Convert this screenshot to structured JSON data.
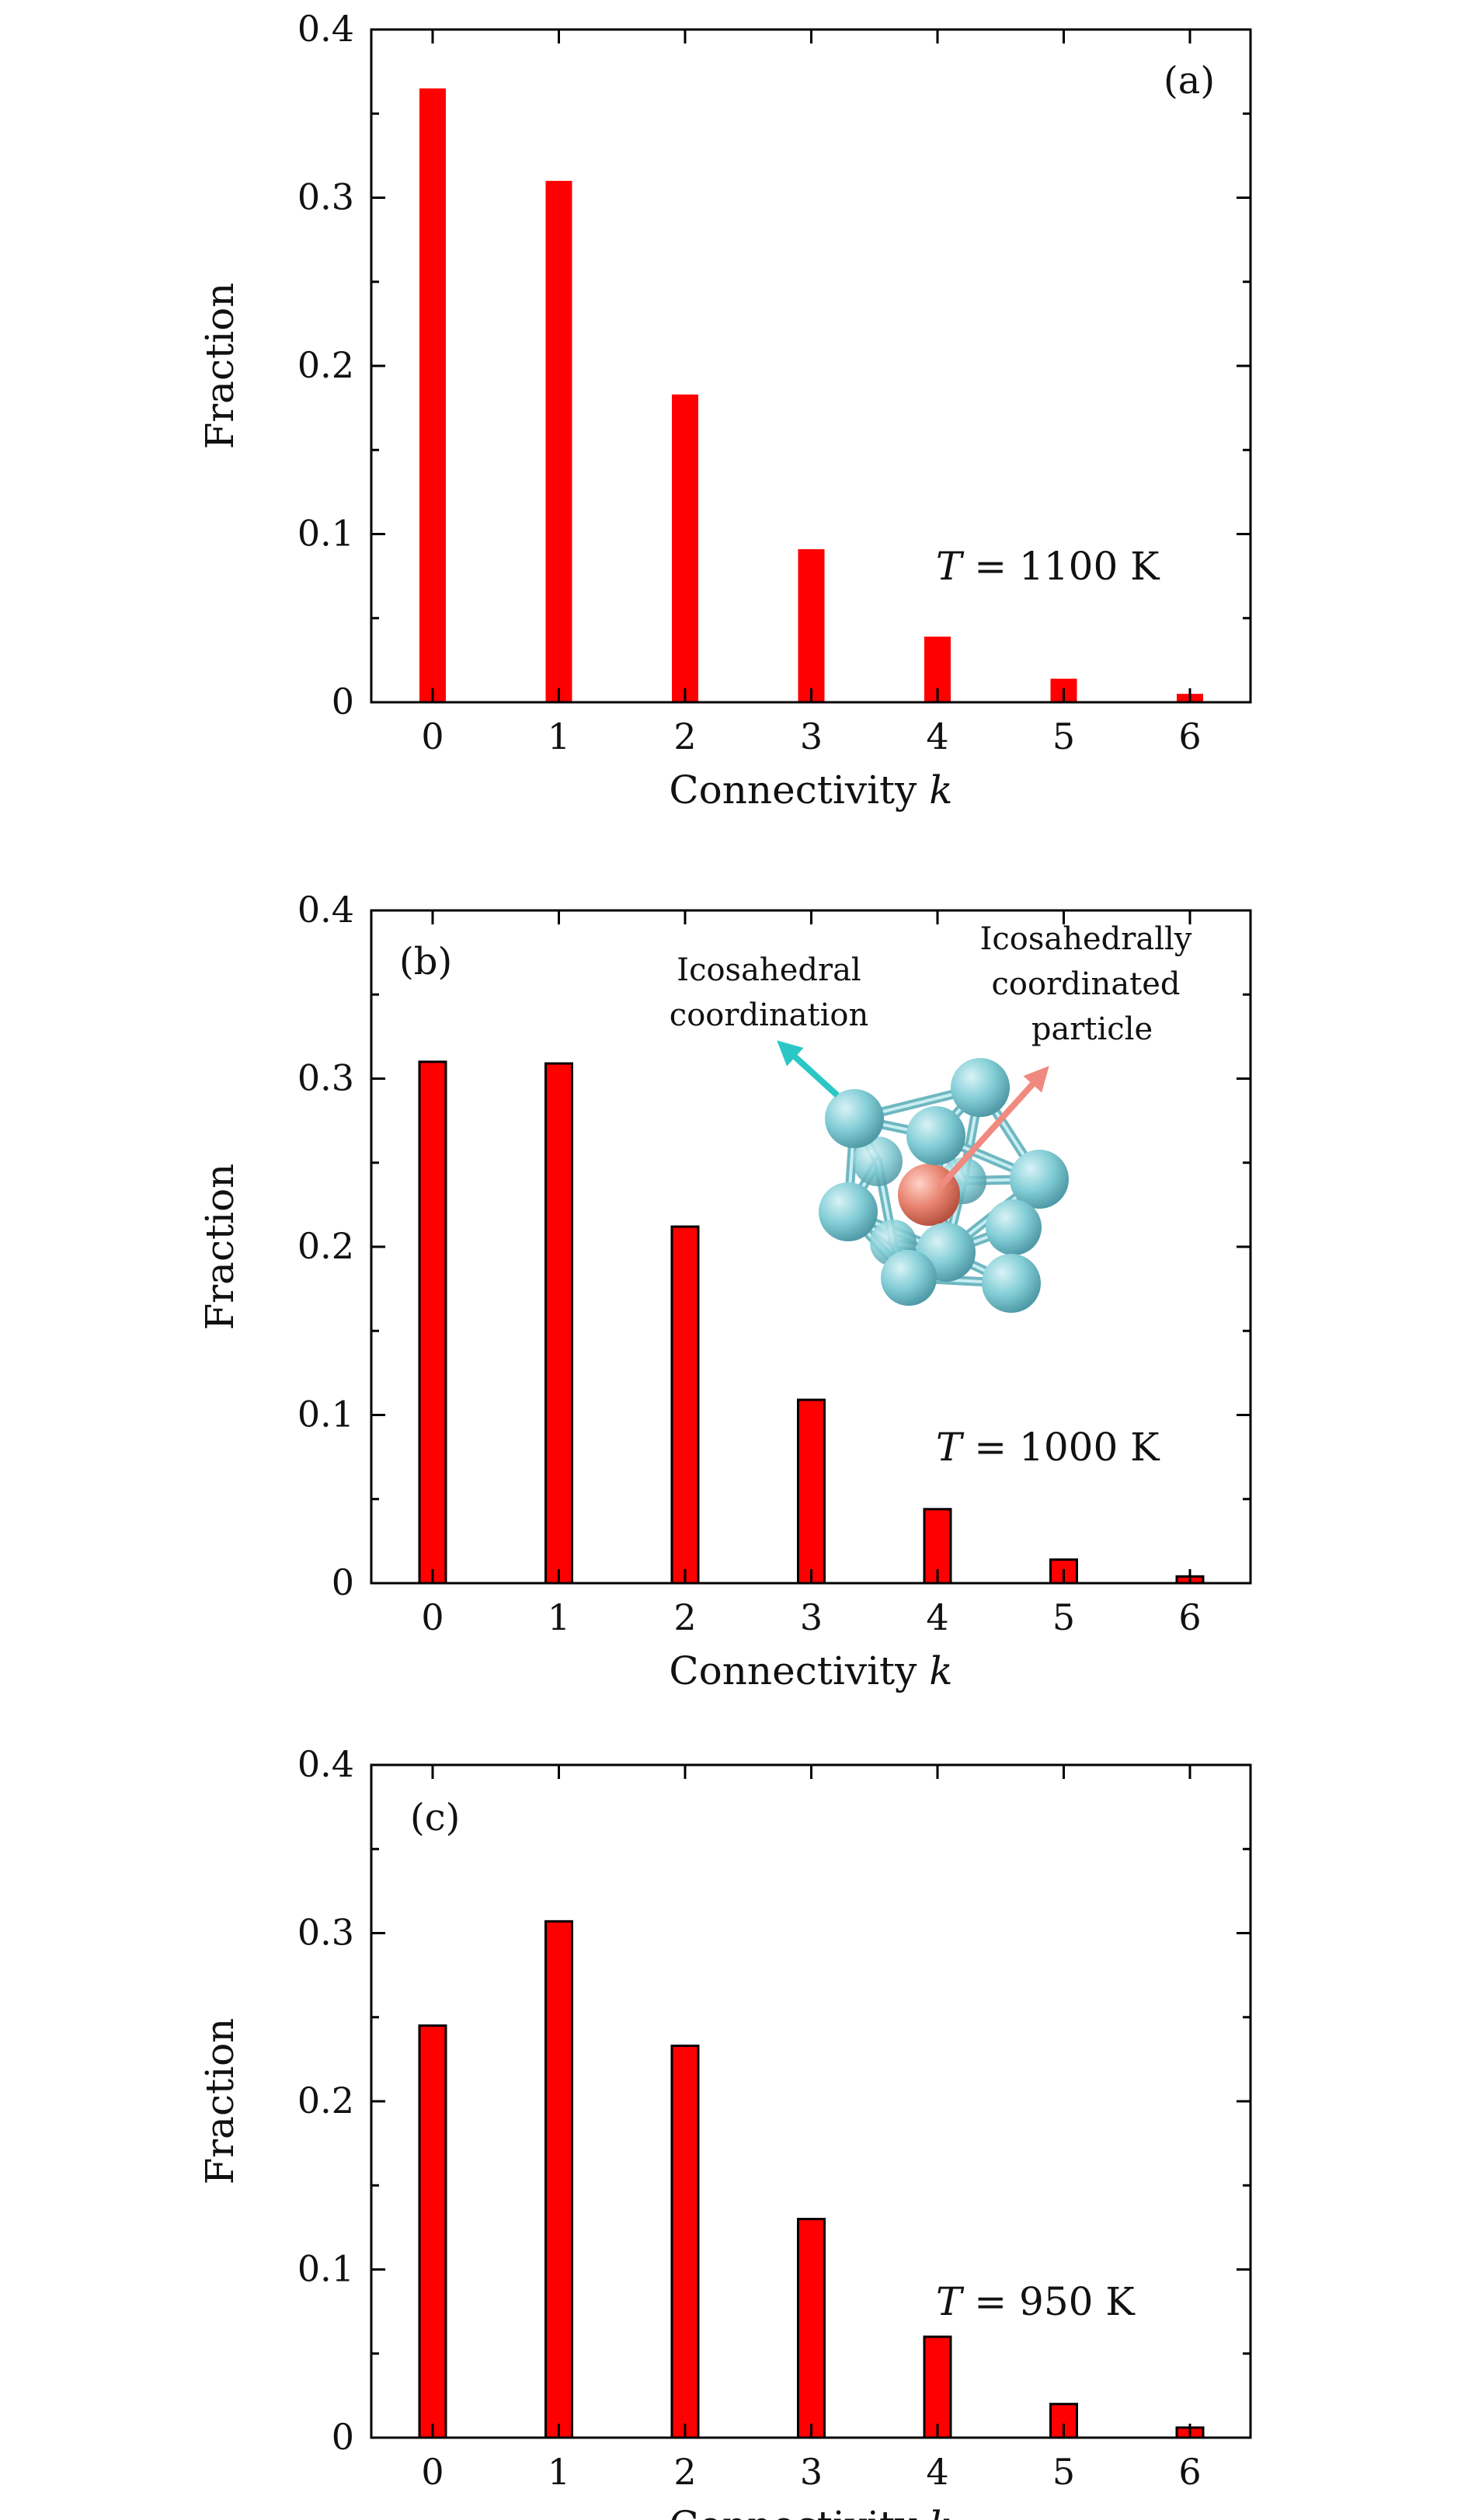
{
  "colors": {
    "bar_fill": "#ff0000",
    "bar_edge": "#000000",
    "axis": "#000000",
    "atom_blue": "#82cdd6",
    "atom_center": "#e8826f",
    "arrow_cyan": "#2bc7c7",
    "arrow_salmon": "#f08a80"
  },
  "inset": {
    "left_annotation": [
      "Icosahedral",
      "coordination"
    ],
    "right_annotation": [
      "Icosahedrally",
      "coordinated",
      "particle"
    ],
    "icons": [
      "icosahedral-cluster-icon",
      "cyan-arrow-icon",
      "salmon-arrow-icon"
    ]
  },
  "chart_data": [
    {
      "type": "bar",
      "panel": "(a)",
      "temperature": {
        "symbol": "T",
        "rest": " = 1100 K"
      },
      "xlabel": {
        "text": "Connectivity ",
        "italic": "k"
      },
      "ylabel": "Fraction",
      "categories": [
        "0",
        "1",
        "2",
        "3",
        "4",
        "5",
        "6"
      ],
      "values": [
        0.365,
        0.31,
        0.183,
        0.091,
        0.039,
        0.014,
        0.005
      ],
      "ylim": [
        0,
        0.4
      ],
      "yticks": [
        "0",
        "0.1",
        "0.2",
        "0.3",
        "0.4"
      ],
      "bar_outline": false,
      "grid": false
    },
    {
      "type": "bar",
      "panel": "(b)",
      "temperature": {
        "symbol": "T",
        "rest": " = 1000 K"
      },
      "xlabel": {
        "text": "Connectivity ",
        "italic": "k"
      },
      "ylabel": "Fraction",
      "categories": [
        "0",
        "1",
        "2",
        "3",
        "4",
        "5",
        "6"
      ],
      "values": [
        0.31,
        0.309,
        0.212,
        0.109,
        0.044,
        0.014,
        0.004
      ],
      "ylim": [
        0,
        0.4
      ],
      "yticks": [
        "0",
        "0.1",
        "0.2",
        "0.3",
        "0.4"
      ],
      "bar_outline": true,
      "grid": false
    },
    {
      "type": "bar",
      "panel": "(c)",
      "temperature": {
        "symbol": "T",
        "rest": " = 950 K"
      },
      "xlabel": {
        "text": "Connectivity ",
        "italic": "k"
      },
      "ylabel": "Fraction",
      "categories": [
        "0",
        "1",
        "2",
        "3",
        "4",
        "5",
        "6"
      ],
      "values": [
        0.245,
        0.307,
        0.233,
        0.13,
        0.06,
        0.02,
        0.006
      ],
      "ylim": [
        0,
        0.4
      ],
      "yticks": [
        "0",
        "0.1",
        "0.2",
        "0.3",
        "0.4"
      ],
      "bar_outline": true,
      "grid": false
    }
  ]
}
